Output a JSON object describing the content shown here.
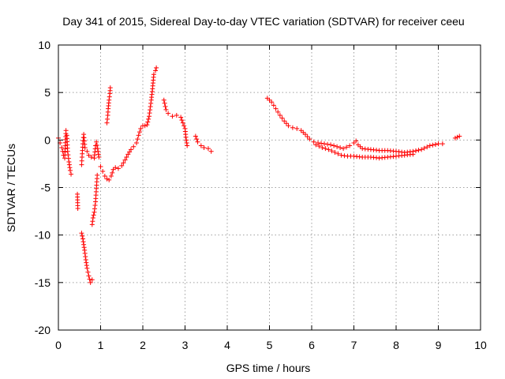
{
  "chart_data": {
    "type": "scatter",
    "title": "Day 341 of 2015, Sidereal Day-to-day VTEC variation (SDTVAR) for receiver ceeu",
    "xlabel": "GPS time / hours",
    "ylabel": "SDTVAR / TECUs",
    "xlim": [
      0,
      10
    ],
    "ylim": [
      -20,
      10
    ],
    "xticks": [
      0,
      1,
      2,
      3,
      4,
      5,
      6,
      7,
      8,
      9,
      10
    ],
    "yticks": [
      -20,
      -15,
      -10,
      -5,
      0,
      5,
      10
    ],
    "grid": true,
    "marker": "+",
    "color": "#ff0000",
    "segments": [
      [
        [
          0.0,
          0.2
        ],
        [
          0.04,
          -0.3
        ],
        [
          0.08,
          -0.8
        ],
        [
          0.12,
          -1.6
        ],
        [
          0.15,
          -1.9
        ],
        [
          0.18,
          1.0
        ],
        [
          0.2,
          0.5
        ],
        [
          0.22,
          -1.2
        ],
        [
          0.25,
          -2.3
        ],
        [
          0.28,
          -3.2
        ],
        [
          0.3,
          -3.6
        ]
      ],
      [
        [
          0.45,
          -5.7
        ],
        [
          0.46,
          -7.2
        ]
      ],
      [
        [
          0.55,
          -2.6
        ],
        [
          0.56,
          -1.8
        ],
        [
          0.58,
          -0.4
        ],
        [
          0.6,
          0.6
        ],
        [
          0.63,
          -0.8
        ],
        [
          0.68,
          -1.2
        ],
        [
          0.72,
          -1.6
        ],
        [
          0.78,
          -1.8
        ],
        [
          0.85,
          -1.9
        ],
        [
          0.88,
          -0.6
        ],
        [
          0.9,
          -0.2
        ],
        [
          0.93,
          -0.9
        ],
        [
          0.96,
          -1.8
        ]
      ],
      [
        [
          0.55,
          -9.8
        ],
        [
          0.58,
          -10.4
        ],
        [
          0.62,
          -11.6
        ],
        [
          0.65,
          -12.6
        ],
        [
          0.68,
          -13.5
        ],
        [
          0.72,
          -14.3
        ],
        [
          0.76,
          -15.0
        ],
        [
          0.8,
          -14.7
        ]
      ],
      [
        [
          0.8,
          -8.9
        ],
        [
          0.82,
          -8.2
        ],
        [
          0.85,
          -7.6
        ],
        [
          0.88,
          -6.5
        ],
        [
          0.9,
          -5.1
        ],
        [
          0.92,
          -3.7
        ]
      ],
      [
        [
          1.0,
          -2.8
        ],
        [
          1.05,
          -3.3
        ],
        [
          1.1,
          -3.8
        ],
        [
          1.15,
          -4.1
        ],
        [
          1.2,
          -4.2
        ],
        [
          1.25,
          -3.8
        ],
        [
          1.3,
          -3.1
        ],
        [
          1.35,
          -2.9
        ],
        [
          1.42,
          -3.0
        ],
        [
          1.5,
          -2.7
        ],
        [
          1.58,
          -2.1
        ],
        [
          1.65,
          -1.5
        ],
        [
          1.72,
          -1.0
        ],
        [
          1.78,
          -0.7
        ],
        [
          1.85,
          -0.3
        ],
        [
          1.9,
          0.5
        ],
        [
          1.95,
          1.2
        ],
        [
          2.0,
          1.5
        ],
        [
          2.05,
          1.5
        ],
        [
          2.1,
          1.6
        ],
        [
          2.15,
          2.5
        ],
        [
          2.2,
          4.2
        ],
        [
          2.23,
          5.4
        ],
        [
          2.26,
          6.9
        ],
        [
          2.3,
          7.3
        ],
        [
          2.32,
          7.6
        ]
      ],
      [
        [
          1.15,
          1.8
        ],
        [
          1.17,
          2.6
        ],
        [
          1.18,
          3.3
        ],
        [
          1.2,
          4.2
        ],
        [
          1.22,
          4.9
        ],
        [
          1.23,
          5.5
        ]
      ],
      [
        [
          2.5,
          4.2
        ],
        [
          2.55,
          3.2
        ],
        [
          2.6,
          2.8
        ],
        [
          2.7,
          2.5
        ],
        [
          2.8,
          2.6
        ],
        [
          2.9,
          2.4
        ],
        [
          2.95,
          1.8
        ],
        [
          3.0,
          1.2
        ],
        [
          3.02,
          0.3
        ],
        [
          3.05,
          -0.6
        ]
      ],
      [
        [
          3.25,
          0.4
        ],
        [
          3.3,
          -0.2
        ],
        [
          3.38,
          -0.6
        ],
        [
          3.45,
          -0.8
        ],
        [
          3.55,
          -0.9
        ],
        [
          3.62,
          -1.2
        ]
      ],
      [
        [
          4.95,
          4.4
        ],
        [
          5.05,
          4.0
        ],
        [
          5.15,
          3.3
        ],
        [
          5.25,
          2.6
        ],
        [
          5.35,
          2.0
        ],
        [
          5.45,
          1.5
        ],
        [
          5.55,
          1.3
        ],
        [
          5.65,
          1.2
        ],
        [
          5.75,
          1.0
        ],
        [
          5.85,
          0.6
        ],
        [
          5.95,
          0.1
        ],
        [
          6.05,
          -0.2
        ],
        [
          6.15,
          -0.3
        ],
        [
          6.3,
          -0.4
        ],
        [
          6.45,
          -0.5
        ],
        [
          6.6,
          -0.7
        ],
        [
          6.75,
          -0.9
        ],
        [
          6.9,
          -0.6
        ],
        [
          7.0,
          -0.3
        ],
        [
          7.05,
          -0.1
        ],
        [
          7.1,
          -0.5
        ],
        [
          7.2,
          -0.9
        ],
        [
          7.4,
          -1.0
        ],
        [
          7.6,
          -1.1
        ],
        [
          7.8,
          -1.1
        ],
        [
          8.0,
          -1.2
        ],
        [
          8.2,
          -1.3
        ],
        [
          8.4,
          -1.2
        ],
        [
          8.6,
          -1.0
        ],
        [
          8.8,
          -0.6
        ],
        [
          9.0,
          -0.4
        ],
        [
          9.1,
          -0.4
        ]
      ],
      [
        [
          6.1,
          -0.5
        ],
        [
          6.25,
          -0.8
        ],
        [
          6.4,
          -1.0
        ],
        [
          6.55,
          -1.3
        ],
        [
          6.7,
          -1.6
        ],
        [
          6.85,
          -1.7
        ],
        [
          7.0,
          -1.7
        ],
        [
          7.2,
          -1.8
        ],
        [
          7.4,
          -1.8
        ],
        [
          7.6,
          -1.9
        ],
        [
          7.8,
          -1.8
        ],
        [
          8.0,
          -1.7
        ],
        [
          8.2,
          -1.6
        ],
        [
          8.4,
          -1.5
        ]
      ],
      [
        [
          9.4,
          0.2
        ],
        [
          9.45,
          0.3
        ],
        [
          9.5,
          0.4
        ]
      ]
    ]
  }
}
